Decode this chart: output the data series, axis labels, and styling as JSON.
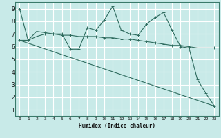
{
  "xlabel": "Humidex (Indice chaleur)",
  "bg_color": "#c8eae8",
  "grid_color": "#ffffff",
  "line_color": "#2e6b5e",
  "xlim": [
    -0.5,
    23.5
  ],
  "ylim": [
    0.5,
    9.5
  ],
  "xticks": [
    0,
    1,
    2,
    3,
    4,
    5,
    6,
    7,
    8,
    9,
    10,
    11,
    12,
    13,
    14,
    15,
    16,
    17,
    18,
    19,
    20,
    21,
    22,
    23
  ],
  "yticks": [
    1,
    2,
    3,
    4,
    5,
    6,
    7,
    8,
    9
  ],
  "line1_x": [
    0,
    1,
    2,
    3,
    4,
    5,
    6,
    7,
    8,
    9,
    10,
    11,
    12,
    13,
    14,
    15,
    16,
    17,
    18,
    19,
    20,
    21,
    22,
    23
  ],
  "line1_y": [
    9.0,
    6.5,
    7.2,
    7.1,
    7.0,
    7.0,
    5.8,
    5.8,
    7.5,
    7.3,
    8.1,
    9.2,
    7.3,
    7.0,
    6.9,
    7.8,
    8.3,
    8.7,
    7.3,
    6.0,
    5.9,
    3.4,
    2.3,
    1.3
  ],
  "line2_x": [
    0,
    23
  ],
  "line2_y": [
    6.5,
    1.3
  ],
  "line3_x": [
    0,
    1,
    2,
    3,
    4,
    5,
    6,
    7,
    8,
    9,
    10,
    11,
    12,
    13,
    14,
    15,
    16,
    17,
    18,
    19,
    20,
    21,
    22,
    23
  ],
  "line3_y": [
    6.5,
    6.5,
    6.8,
    7.0,
    7.0,
    6.9,
    6.9,
    6.8,
    6.8,
    6.8,
    6.7,
    6.7,
    6.6,
    6.6,
    6.5,
    6.4,
    6.3,
    6.2,
    6.1,
    6.1,
    6.0,
    5.9,
    5.9,
    5.9
  ]
}
